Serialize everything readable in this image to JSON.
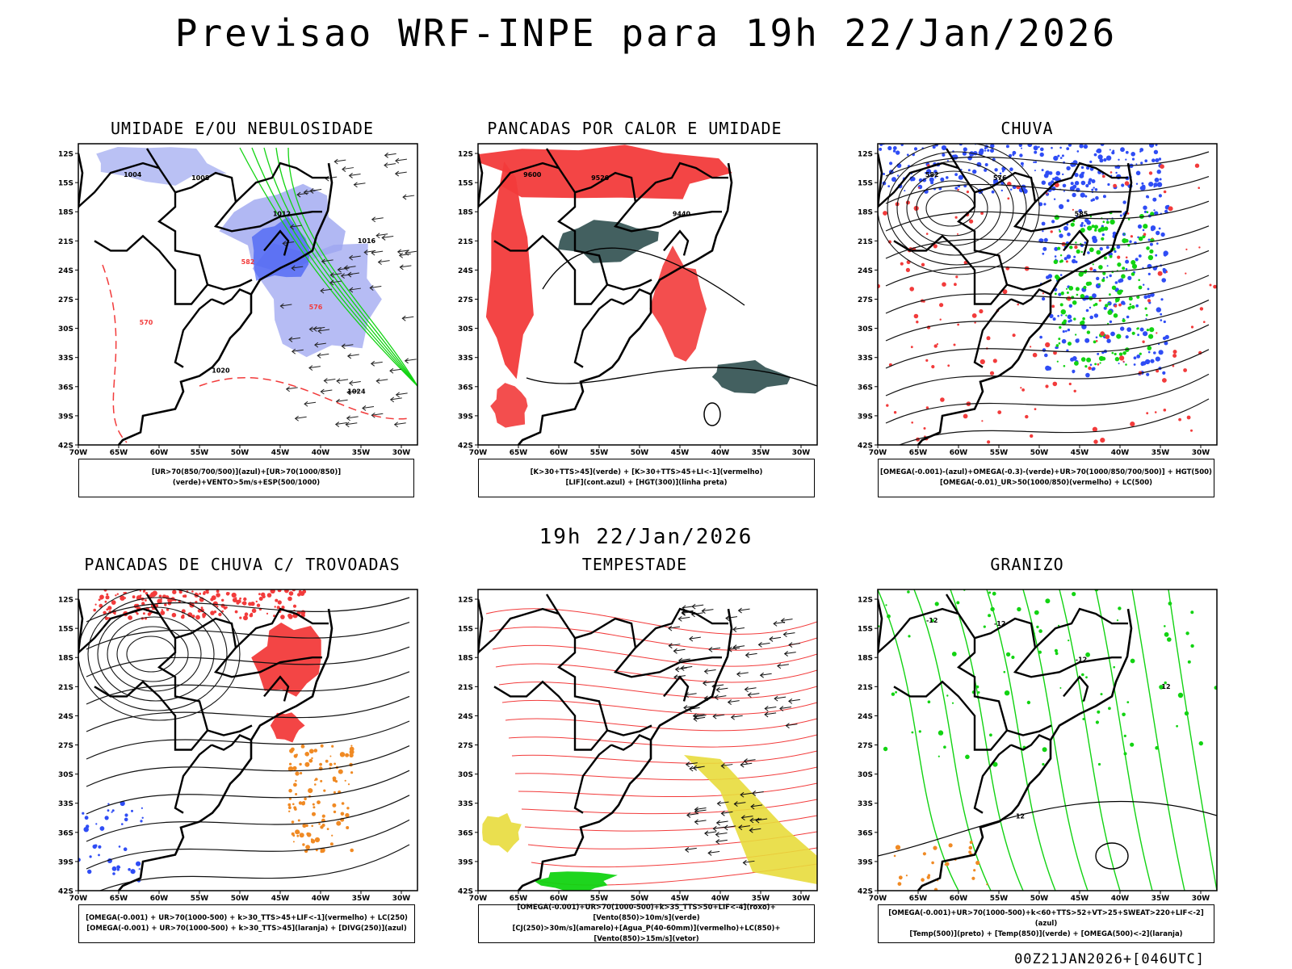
{
  "title": "Previsao WRF-INPE  para 19h 22/Jan/2026",
  "subtitle": "19h 22/Jan/2026",
  "footer": "00Z21JAN2026+[046UTC]",
  "axes": {
    "lat_labels": [
      "12S",
      "15S",
      "18S",
      "21S",
      "24S",
      "27S",
      "30S",
      "33S",
      "36S",
      "39S",
      "42S"
    ],
    "lon_labels": [
      "70W",
      "65W",
      "60W",
      "55W",
      "50W",
      "45W",
      "40W",
      "35W",
      "30W"
    ]
  },
  "colors": {
    "red": "#f23b3b",
    "green": "#12d312",
    "blue": "#2f4df5",
    "lightblue": "#9da6f0",
    "darkteal": "#2f4f4f",
    "yellow": "#e8dc3c",
    "orange": "#f08a24"
  },
  "panels": [
    {
      "title": "UMIDADE E/OU NEBULOSIDADE",
      "caption": [
        "[UR>70(850/700/500)](azul)+[UR>70(1000/850)](verde)+VENTO>5m/s+ESP(500/1000)"
      ],
      "labels": [
        "1004",
        "1008",
        "1012",
        "1016",
        "1020",
        "1024",
        "570",
        "576",
        "582"
      ]
    },
    {
      "title": "PANCADAS POR CALOR E UMIDADE",
      "caption": [
        "[K>30+TTS>45](verde) + [K>30+TTS>45+LI<-1](vermelho)",
        "[LIF](cont.azul) + [HGT(300)](linha preta)"
      ],
      "labels": [
        "9600",
        "9520",
        "9440"
      ]
    },
    {
      "title": "CHUVA",
      "caption": [
        "[OMEGA(-0.001)-(azul)+OMEGA(-0.3)-(verde)+UR>70(1000/850/700/500)] + HGT(500)",
        "[OMEGA(-0.01)_UR>50(1000/850)(vermelho) + LC(500)"
      ],
      "labels": [
        "582",
        "576",
        "585"
      ]
    },
    {
      "title": "PANCADAS DE CHUVA C/ TROVOADAS",
      "caption": [
        "[OMEGA(-0.001) + UR>70(1000-500) + k>30_TTS>45+LIF<-1](vermelho) + LC(250)",
        "[OMEGA(-0.001) + UR>70(1000-500) + k>30_TTS>45](laranja) + [DIVG(250)](azul)"
      ],
      "labels": []
    },
    {
      "title": "TEMPESTADE",
      "caption": [
        "[OMEGA(-0.001)+UR>70(1000-500)+k>35_TTS>50+LIF<-4](roxo)+[Vento(850)>10m/s](verde)",
        "[CJ(250)>30m/s](amarelo)+[Agua_P(40-60mm)](vermelho)+LC(850)+[Vento(850)>15m/s](vetor)"
      ],
      "labels": []
    },
    {
      "title": "GRANIZO",
      "caption": [
        "[OMEGA(-0.001)+UR>70(1000-500)+k<60+TTS>52+VT>25+SWEAT>220+LIF<-2](azul)",
        "[Temp(500)](preto) + [Temp(850)](verde) + [OMEGA(500)<-2](laranja)"
      ],
      "labels": [
        "-12",
        "-12",
        "-12",
        "12",
        "12"
      ]
    }
  ]
}
